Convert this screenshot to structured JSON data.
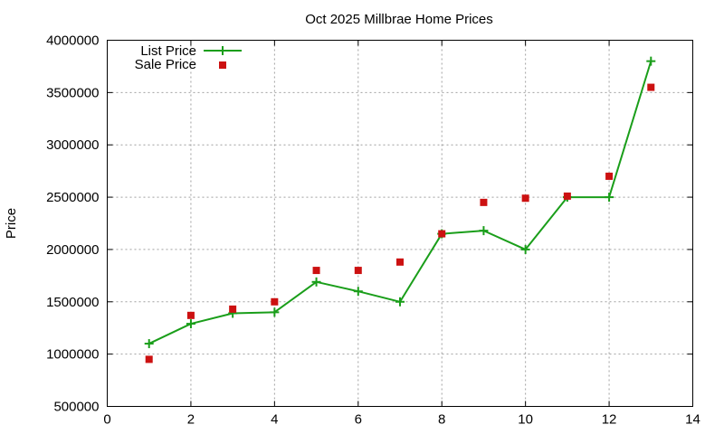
{
  "chart_data": {
    "type": "line",
    "title": "Oct 2025 Millbrae Home Prices",
    "xlabel": "",
    "ylabel": "Price",
    "xlim": [
      0,
      14
    ],
    "ylim": [
      500000,
      4000000
    ],
    "xticks": [
      0,
      2,
      4,
      6,
      8,
      10,
      12,
      14
    ],
    "yticks": [
      500000,
      1000000,
      1500000,
      2000000,
      2500000,
      3000000,
      3500000,
      4000000
    ],
    "grid": true,
    "legend_position": "top-left",
    "series": [
      {
        "name": "List Price",
        "style": "line+cross",
        "color": "#1a9e1a",
        "x": [
          1,
          2,
          3,
          4,
          5,
          6,
          7,
          8,
          9,
          10,
          11,
          12,
          13
        ],
        "y": [
          1100000,
          1290000,
          1390000,
          1400000,
          1690000,
          1600000,
          1500000,
          2150000,
          2180000,
          2000000,
          2500000,
          2500000,
          3800000
        ]
      },
      {
        "name": "Sale Price",
        "style": "square-points",
        "color": "#cc1111",
        "x": [
          1,
          2,
          3,
          4,
          5,
          6,
          7,
          8,
          9,
          10,
          11,
          12,
          13
        ],
        "y": [
          950000,
          1370000,
          1430000,
          1500000,
          1800000,
          1800000,
          1880000,
          2150000,
          2450000,
          2490000,
          2510000,
          2700000,
          3550000
        ]
      }
    ]
  }
}
